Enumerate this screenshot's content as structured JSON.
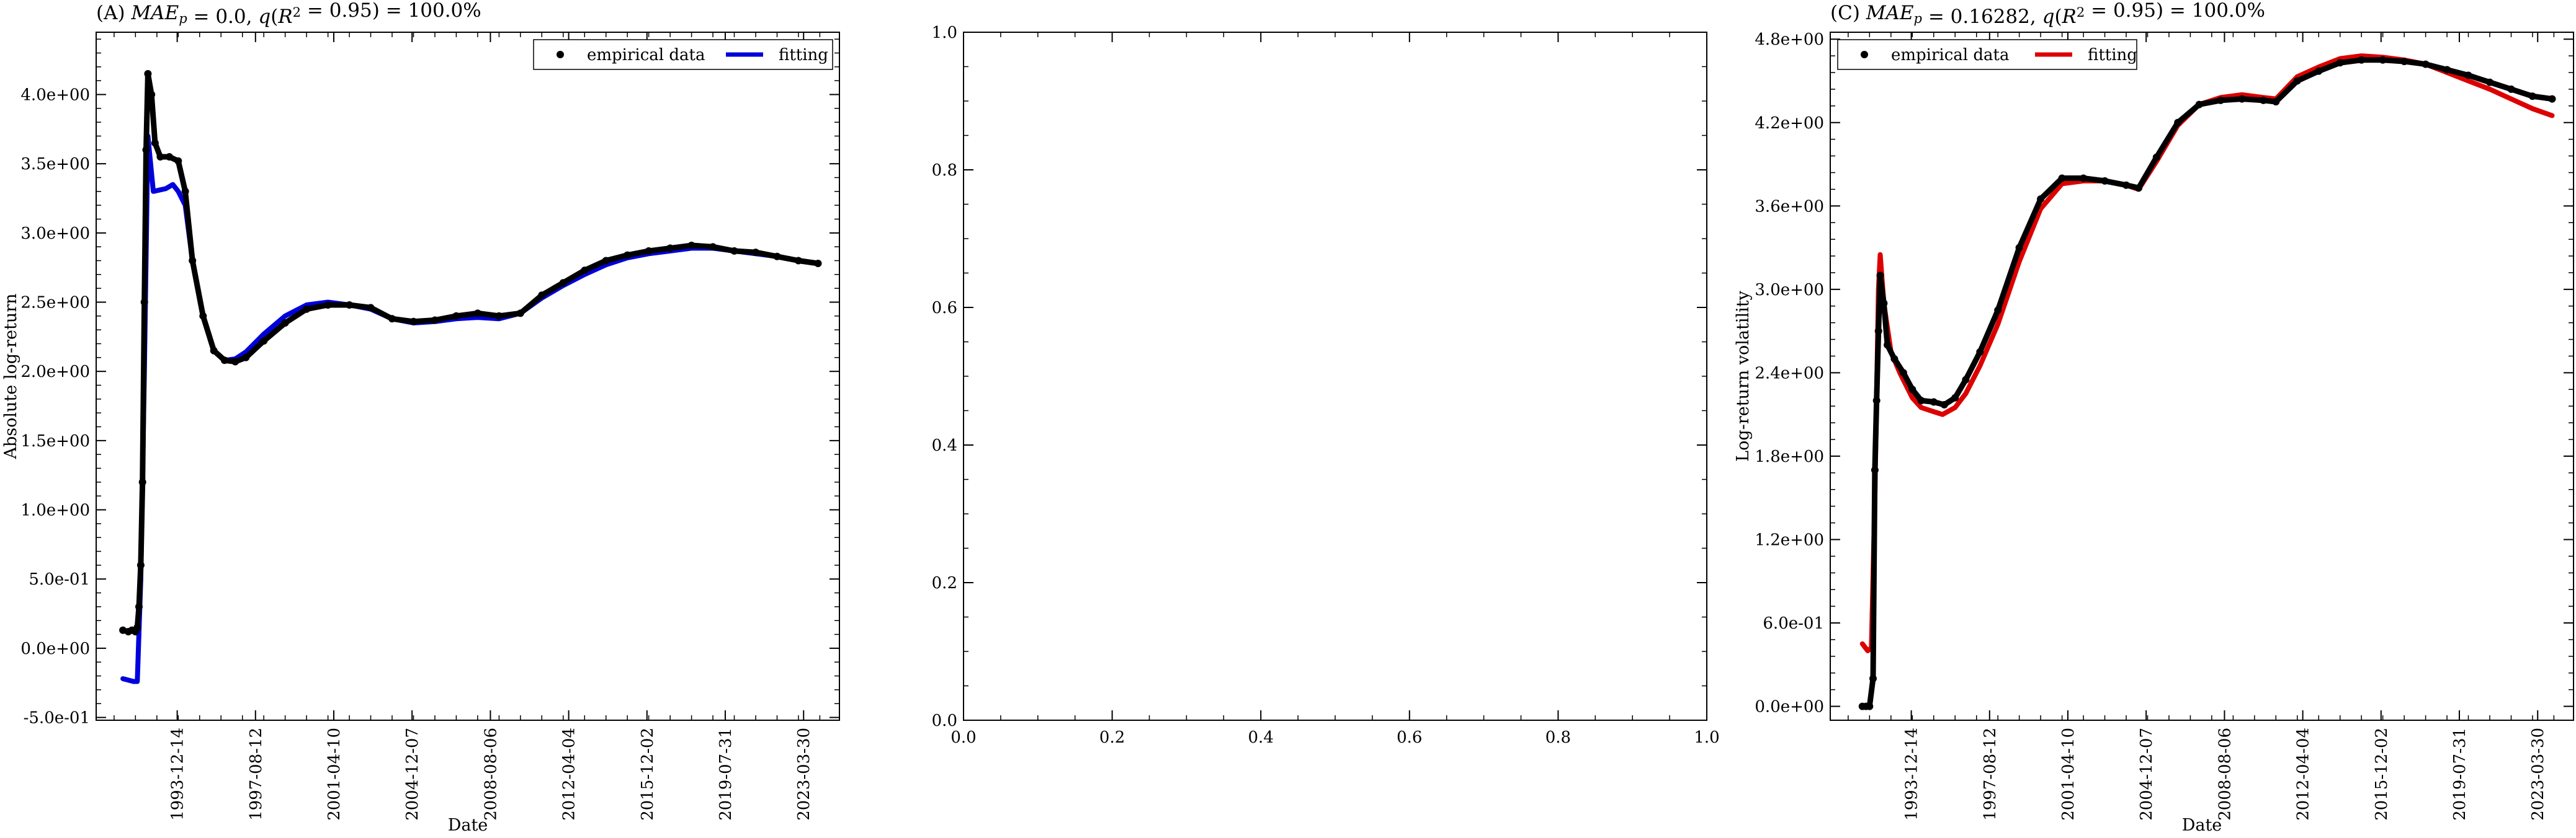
{
  "chart_data": [
    {
      "id": "A",
      "type": "scatter",
      "title": "(A) MAE_p = 0.0, q(R^2 = 0.95) = 100.0%",
      "xlabel": "Date",
      "ylabel": "Absolute log-return",
      "yticks": [
        -0.5,
        0.0,
        0.5,
        1.0,
        1.5,
        2.0,
        2.5,
        3.0,
        3.5,
        4.0
      ],
      "ytick_labels": [
        "-5.0e-01",
        "0.0e+00",
        "5.0e-01",
        "1.0e+00",
        "1.5e+00",
        "2.0e+00",
        "2.5e+00",
        "3.0e+00",
        "3.5e+00",
        "4.0e+00"
      ],
      "ylim": [
        -0.52,
        4.45
      ],
      "xlim": [
        "1990-03-01",
        "2024-12-01"
      ],
      "xticks": [
        "1993-12-14",
        "1997-08-12",
        "2001-04-10",
        "2004-12-07",
        "2008-08-06",
        "2012-04-04",
        "2015-12-02",
        "2019-07-31",
        "2023-03-30"
      ],
      "legend": {
        "position": "top-right",
        "entries": [
          "empirical data",
          "fitting"
        ]
      },
      "grid": false,
      "series": [
        {
          "name": "empirical data",
          "kind": "scatter",
          "color": "#000000",
          "points": [
            [
              "1991-06-01",
              0.13
            ],
            [
              "1991-09-01",
              0.12
            ],
            [
              "1991-11-01",
              0.13
            ],
            [
              "1992-01-01",
              0.12
            ],
            [
              "1992-02-01",
              0.15
            ],
            [
              "1992-03-01",
              0.3
            ],
            [
              "1992-04-01",
              0.6
            ],
            [
              "1992-05-01",
              1.2
            ],
            [
              "1992-06-01",
              2.5
            ],
            [
              "1992-07-01",
              3.6
            ],
            [
              "1992-08-01",
              4.15
            ],
            [
              "1992-10-01",
              4.0
            ],
            [
              "1992-12-01",
              3.65
            ],
            [
              "1993-03-01",
              3.55
            ],
            [
              "1993-08-01",
              3.55
            ],
            [
              "1994-01-01",
              3.52
            ],
            [
              "1994-05-01",
              3.3
            ],
            [
              "1994-09-01",
              2.8
            ],
            [
              "1995-03-01",
              2.4
            ],
            [
              "1995-09-01",
              2.15
            ],
            [
              "1996-03-01",
              2.08
            ],
            [
              "1996-09-01",
              2.07
            ],
            [
              "1997-03-01",
              2.1
            ],
            [
              "1998-01-01",
              2.22
            ],
            [
              "1999-01-01",
              2.35
            ],
            [
              "2000-01-01",
              2.45
            ],
            [
              "2001-01-01",
              2.48
            ],
            [
              "2002-01-01",
              2.48
            ],
            [
              "2003-01-01",
              2.46
            ],
            [
              "2004-01-01",
              2.38
            ],
            [
              "2005-01-01",
              2.36
            ],
            [
              "2006-01-01",
              2.37
            ],
            [
              "2007-01-01",
              2.4
            ],
            [
              "2008-01-01",
              2.42
            ],
            [
              "2009-01-01",
              2.4
            ],
            [
              "2010-01-01",
              2.42
            ],
            [
              "2011-01-01",
              2.55
            ],
            [
              "2012-01-01",
              2.64
            ],
            [
              "2013-01-01",
              2.73
            ],
            [
              "2014-01-01",
              2.8
            ],
            [
              "2015-01-01",
              2.84
            ],
            [
              "2016-01-01",
              2.87
            ],
            [
              "2017-01-01",
              2.89
            ],
            [
              "2018-01-01",
              2.91
            ],
            [
              "2019-01-01",
              2.9
            ],
            [
              "2020-01-01",
              2.87
            ],
            [
              "2021-01-01",
              2.86
            ],
            [
              "2022-01-01",
              2.83
            ],
            [
              "2023-01-01",
              2.8
            ],
            [
              "2023-12-01",
              2.78
            ]
          ]
        },
        {
          "name": "fitting",
          "kind": "line",
          "color": "#0000dd",
          "points": [
            [
              "1991-06-01",
              -0.22
            ],
            [
              "1991-12-01",
              -0.24
            ],
            [
              "1992-02-01",
              -0.24
            ],
            [
              "1992-04-01",
              0.5
            ],
            [
              "1992-06-01",
              2.0
            ],
            [
              "1992-08-01",
              3.7
            ],
            [
              "1992-11-01",
              3.3
            ],
            [
              "1993-06-01",
              3.32
            ],
            [
              "1993-10-01",
              3.35
            ],
            [
              "1994-01-01",
              3.3
            ],
            [
              "1994-05-01",
              3.2
            ],
            [
              "1994-09-01",
              2.8
            ],
            [
              "1995-03-01",
              2.4
            ],
            [
              "1995-09-01",
              2.15
            ],
            [
              "1996-03-01",
              2.08
            ],
            [
              "1996-09-01",
              2.09
            ],
            [
              "1997-03-01",
              2.14
            ],
            [
              "1998-01-01",
              2.27
            ],
            [
              "1999-01-01",
              2.4
            ],
            [
              "2000-01-01",
              2.48
            ],
            [
              "2001-01-01",
              2.5
            ],
            [
              "2002-01-01",
              2.48
            ],
            [
              "2003-01-01",
              2.45
            ],
            [
              "2004-01-01",
              2.38
            ],
            [
              "2005-01-01",
              2.35
            ],
            [
              "2006-01-01",
              2.36
            ],
            [
              "2007-01-01",
              2.38
            ],
            [
              "2008-01-01",
              2.39
            ],
            [
              "2009-01-01",
              2.38
            ],
            [
              "2010-01-01",
              2.42
            ],
            [
              "2011-01-01",
              2.53
            ],
            [
              "2012-01-01",
              2.62
            ],
            [
              "2013-01-01",
              2.7
            ],
            [
              "2014-01-01",
              2.77
            ],
            [
              "2015-01-01",
              2.82
            ],
            [
              "2016-01-01",
              2.85
            ],
            [
              "2017-01-01",
              2.87
            ],
            [
              "2018-01-01",
              2.89
            ],
            [
              "2019-01-01",
              2.89
            ],
            [
              "2020-01-01",
              2.87
            ],
            [
              "2021-01-01",
              2.85
            ],
            [
              "2022-01-01",
              2.83
            ],
            [
              "2023-01-01",
              2.8
            ],
            [
              "2023-12-01",
              2.78
            ]
          ]
        }
      ]
    },
    {
      "id": "B",
      "type": "scatter",
      "title": "",
      "xlabel": "",
      "ylabel": "",
      "xlim": [
        0,
        1
      ],
      "ylim": [
        0,
        1
      ],
      "xticks": [
        0.0,
        0.2,
        0.4,
        0.6,
        0.8,
        1.0
      ],
      "xtick_labels": [
        "0.0",
        "0.2",
        "0.4",
        "0.6",
        "0.8",
        "1.0"
      ],
      "yticks": [
        0.0,
        0.2,
        0.4,
        0.6,
        0.8,
        1.0
      ],
      "ytick_labels": [
        "0.0",
        "0.2",
        "0.4",
        "0.6",
        "0.8",
        "1.0"
      ],
      "grid": false,
      "series": []
    },
    {
      "id": "C",
      "type": "scatter",
      "title": "(C) MAE_p = 0.16282, q(R^2 = 0.95) = 100.0%",
      "xlabel": "Date",
      "ylabel": "Log-return volatility",
      "yticks": [
        0.0,
        0.6,
        1.2,
        1.8,
        2.4,
        3.0,
        3.6,
        4.2,
        4.8
      ],
      "ytick_labels": [
        "0.0e+00",
        "6.0e-01",
        "1.2e+00",
        "1.8e+00",
        "2.4e+00",
        "3.0e+00",
        "3.6e+00",
        "4.2e+00",
        "4.8e+00"
      ],
      "ylim": [
        -0.1,
        4.85
      ],
      "xlim": [
        "1990-03-01",
        "2024-12-01"
      ],
      "xticks": [
        "1993-12-14",
        "1997-08-12",
        "2001-04-10",
        "2004-12-07",
        "2008-08-06",
        "2012-04-04",
        "2015-12-02",
        "2019-07-31",
        "2023-03-30"
      ],
      "legend": {
        "position": "top-left",
        "entries": [
          "empirical data",
          "fitting"
        ]
      },
      "grid": false,
      "series": [
        {
          "name": "empirical data",
          "kind": "scatter",
          "color": "#000000",
          "points": [
            [
              "1991-09-01",
              0.0
            ],
            [
              "1991-11-01",
              0.0
            ],
            [
              "1992-01-01",
              0.0
            ],
            [
              "1992-03-01",
              0.2
            ],
            [
              "1992-04-01",
              1.7
            ],
            [
              "1992-05-01",
              2.2
            ],
            [
              "1992-06-01",
              2.7
            ],
            [
              "1992-07-01",
              3.1
            ],
            [
              "1992-09-01",
              2.9
            ],
            [
              "1992-11-01",
              2.6
            ],
            [
              "1993-03-01",
              2.5
            ],
            [
              "1993-08-01",
              2.4
            ],
            [
              "1994-01-01",
              2.28
            ],
            [
              "1994-06-01",
              2.2
            ],
            [
              "1995-01-01",
              2.19
            ],
            [
              "1995-07-01",
              2.17
            ],
            [
              "1996-01-01",
              2.22
            ],
            [
              "1996-07-01",
              2.35
            ],
            [
              "1997-03-01",
              2.55
            ],
            [
              "1998-01-01",
              2.85
            ],
            [
              "1999-01-01",
              3.3
            ],
            [
              "2000-01-01",
              3.65
            ],
            [
              "2001-01-01",
              3.8
            ],
            [
              "2002-01-01",
              3.8
            ],
            [
              "2003-01-01",
              3.78
            ],
            [
              "2004-01-01",
              3.75
            ],
            [
              "2004-08-01",
              3.73
            ],
            [
              "2005-06-01",
              3.95
            ],
            [
              "2006-06-01",
              4.2
            ],
            [
              "2007-06-01",
              4.33
            ],
            [
              "2008-06-01",
              4.36
            ],
            [
              "2009-06-01",
              4.37
            ],
            [
              "2010-06-01",
              4.36
            ],
            [
              "2011-01-01",
              4.35
            ],
            [
              "2012-01-01",
              4.5
            ],
            [
              "2013-01-01",
              4.57
            ],
            [
              "2014-01-01",
              4.63
            ],
            [
              "2015-01-01",
              4.65
            ],
            [
              "2016-01-01",
              4.65
            ],
            [
              "2017-01-01",
              4.64
            ],
            [
              "2018-01-01",
              4.62
            ],
            [
              "2019-01-01",
              4.58
            ],
            [
              "2020-01-01",
              4.54
            ],
            [
              "2021-01-01",
              4.49
            ],
            [
              "2022-01-01",
              4.44
            ],
            [
              "2023-01-01",
              4.39
            ],
            [
              "2023-12-01",
              4.37
            ]
          ]
        },
        {
          "name": "fitting",
          "kind": "line",
          "color": "#dd0000",
          "points": [
            [
              "1991-09-01",
              0.45
            ],
            [
              "1991-12-01",
              0.4
            ],
            [
              "1992-02-01",
              0.42
            ],
            [
              "1992-04-01",
              1.5
            ],
            [
              "1992-06-01",
              3.0
            ],
            [
              "1992-07-01",
              3.25
            ],
            [
              "1992-09-01",
              2.9
            ],
            [
              "1993-01-01",
              2.55
            ],
            [
              "1993-06-01",
              2.4
            ],
            [
              "1994-01-01",
              2.22
            ],
            [
              "1994-06-01",
              2.15
            ],
            [
              "1995-01-01",
              2.12
            ],
            [
              "1995-06-01",
              2.1
            ],
            [
              "1996-01-01",
              2.15
            ],
            [
              "1996-07-01",
              2.25
            ],
            [
              "1997-03-01",
              2.45
            ],
            [
              "1998-01-01",
              2.75
            ],
            [
              "1999-01-01",
              3.2
            ],
            [
              "2000-01-01",
              3.58
            ],
            [
              "2001-01-01",
              3.76
            ],
            [
              "2002-01-01",
              3.78
            ],
            [
              "2003-01-01",
              3.78
            ],
            [
              "2004-01-01",
              3.75
            ],
            [
              "2004-08-01",
              3.72
            ],
            [
              "2005-06-01",
              3.92
            ],
            [
              "2006-06-01",
              4.18
            ],
            [
              "2007-06-01",
              4.33
            ],
            [
              "2008-06-01",
              4.38
            ],
            [
              "2009-06-01",
              4.4
            ],
            [
              "2010-06-01",
              4.38
            ],
            [
              "2011-01-01",
              4.37
            ],
            [
              "2012-01-01",
              4.53
            ],
            [
              "2013-01-01",
              4.6
            ],
            [
              "2014-01-01",
              4.66
            ],
            [
              "2015-01-01",
              4.68
            ],
            [
              "2016-01-01",
              4.67
            ],
            [
              "2017-01-01",
              4.65
            ],
            [
              "2018-01-01",
              4.62
            ],
            [
              "2019-01-01",
              4.56
            ],
            [
              "2020-01-01",
              4.5
            ],
            [
              "2021-01-01",
              4.44
            ],
            [
              "2022-01-01",
              4.37
            ],
            [
              "2023-01-01",
              4.3
            ],
            [
              "2023-12-01",
              4.25
            ]
          ]
        }
      ]
    }
  ]
}
